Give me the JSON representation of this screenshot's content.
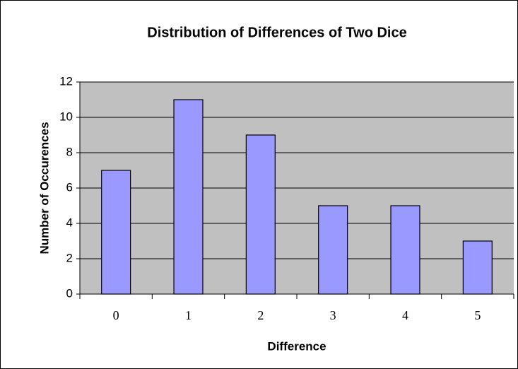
{
  "chart_data": {
    "type": "bar",
    "title": "Distribution of Differences of Two Dice",
    "x_label": "Difference",
    "y_label": "Number of Occurences",
    "categories": [
      "0",
      "1",
      "2",
      "3",
      "4",
      "5"
    ],
    "values": [
      7,
      11,
      9,
      5,
      5,
      3
    ],
    "color": "#9999ff",
    "ylim": [
      0,
      12
    ],
    "yticks": [
      0,
      2,
      4,
      6,
      8,
      10,
      12
    ],
    "grid": true
  }
}
